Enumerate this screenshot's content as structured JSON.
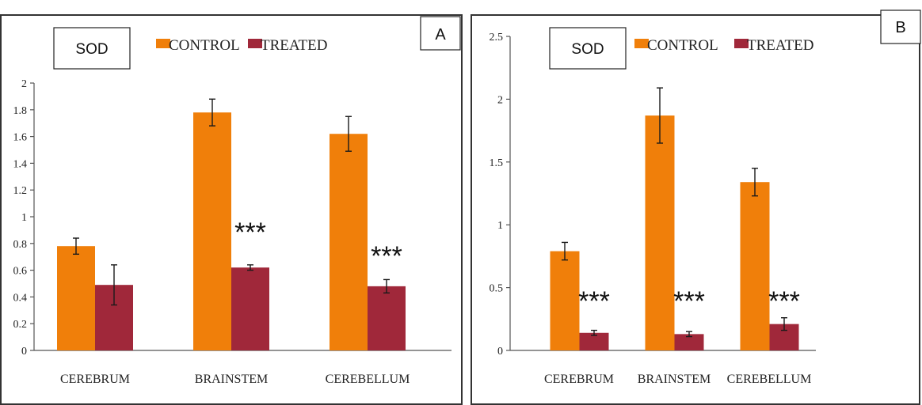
{
  "colors": {
    "control": "#F07F0A",
    "treated": "#A0283A",
    "axis": "#555555",
    "frame": "#333333",
    "text": "#222222"
  },
  "chart_data": [
    {
      "type": "bar",
      "panel_label": "A",
      "title": "SOD",
      "categories": [
        "CEREBRUM",
        "BRAINSTEM",
        "CEREBELLUM"
      ],
      "ylim": [
        0,
        2
      ],
      "yticks": [
        "0",
        "0.2",
        "0.4",
        "0.6",
        "0.8",
        "1",
        "1.2",
        "1.4",
        "1.6",
        "1.8",
        "2"
      ],
      "series": [
        {
          "name": "CONTROL",
          "values": [
            0.78,
            1.78,
            1.62
          ],
          "errors": [
            0.06,
            0.1,
            0.13
          ]
        },
        {
          "name": "TREATED",
          "values": [
            0.49,
            0.62,
            0.48
          ],
          "errors": [
            0.15,
            0.02,
            0.05
          ]
        }
      ],
      "annotations": [
        "",
        "***",
        "***"
      ],
      "legend": "top",
      "grid": false
    },
    {
      "type": "bar",
      "panel_label": "B",
      "title": "SOD",
      "categories": [
        "CEREBRUM",
        "BRAINSTEM",
        "CEREBELLUM"
      ],
      "ylim": [
        0,
        2.5
      ],
      "yticks": [
        "0",
        "0.5",
        "1",
        "1.5",
        "2",
        "2.5"
      ],
      "series": [
        {
          "name": "CONTROL",
          "values": [
            0.79,
            1.87,
            1.34
          ],
          "errors": [
            0.07,
            0.22,
            0.11
          ]
        },
        {
          "name": "TREATED",
          "values": [
            0.14,
            0.13,
            0.21
          ],
          "errors": [
            0.02,
            0.02,
            0.05
          ]
        }
      ],
      "annotations": [
        "***",
        "***",
        "***"
      ],
      "legend": "top",
      "grid": false
    }
  ]
}
